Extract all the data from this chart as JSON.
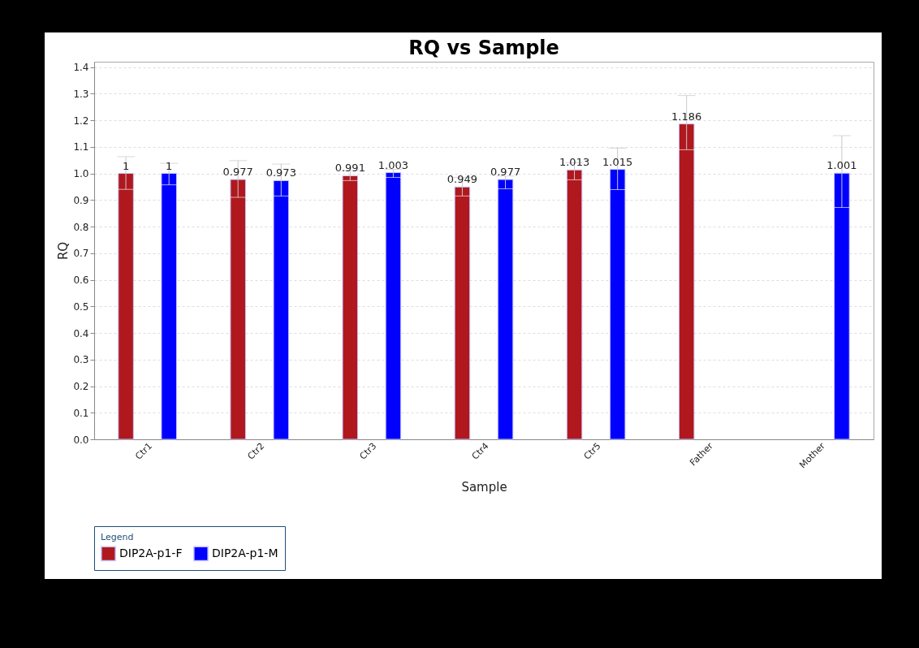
{
  "chart_data": {
    "type": "bar",
    "title": "RQ vs Sample",
    "xlabel": "Sample",
    "ylabel": "RQ",
    "legend_title": "Legend",
    "categories": [
      "Ctr1",
      "Ctr2",
      "Ctr3",
      "Ctr4",
      "Ctr5",
      "Father",
      "Mother"
    ],
    "series": [
      {
        "name": "DIP2A-p1-F",
        "color": "#b0181e",
        "values": [
          1,
          0.977,
          0.991,
          0.949,
          1.013,
          1.186,
          null
        ],
        "errors": [
          [
            0.94,
            1.063
          ],
          [
            0.91,
            1.048
          ],
          [
            0.973,
            1.01
          ],
          [
            0.915,
            0.985
          ],
          [
            0.976,
            1.04
          ],
          [
            1.089,
            1.293
          ],
          null
        ]
      },
      {
        "name": "DIP2A-p1-M",
        "color": "#0000ff",
        "values": [
          1,
          0.973,
          1.003,
          0.977,
          1.015,
          null,
          1.001
        ],
        "errors": [
          [
            0.957,
            1.038
          ],
          [
            0.915,
            1.035
          ],
          [
            0.985,
            1.015
          ],
          [
            0.942,
            0.99
          ],
          [
            0.939,
            1.095
          ],
          null,
          [
            0.872,
            1.142
          ]
        ]
      }
    ],
    "ylim": [
      0,
      1.42
    ],
    "yticks": [
      {
        "value": 0,
        "label": "0.0"
      },
      {
        "value": 0.1,
        "label": "0.1"
      },
      {
        "value": 0.2,
        "label": "0.2"
      },
      {
        "value": 0.3,
        "label": "0.3"
      },
      {
        "value": 0.4,
        "label": "0.4"
      },
      {
        "value": 0.5,
        "label": "0.5"
      },
      {
        "value": 0.6,
        "label": "0.6"
      },
      {
        "value": 0.7,
        "label": "0.7"
      },
      {
        "value": 0.8,
        "label": "0.8"
      },
      {
        "value": 0.9,
        "label": "0.9"
      },
      {
        "value": 1,
        "label": "1.0"
      },
      {
        "value": 1.1,
        "label": "1.1"
      },
      {
        "value": 1.2,
        "label": "1.2"
      },
      {
        "value": 1.3,
        "label": "1.3"
      },
      {
        "value": 1.4,
        "label": "1.4"
      }
    ],
    "grid": "y",
    "legend": "bottom",
    "data_labels": true
  }
}
